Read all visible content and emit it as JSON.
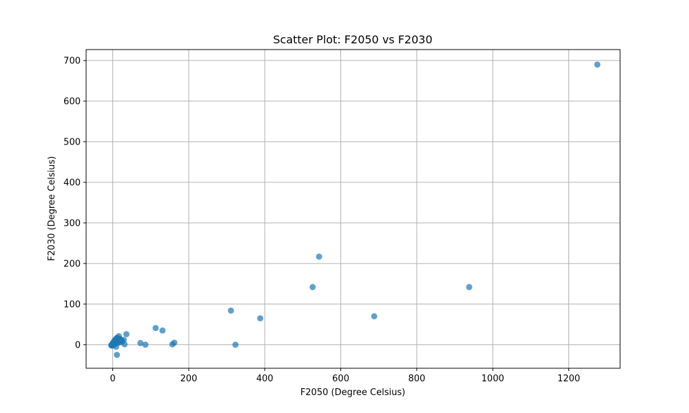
{
  "chart_data": {
    "type": "scatter",
    "title": "Scatter Plot: F2050 vs F2030",
    "xlabel": "F2050 (Degree Celsius)",
    "ylabel": "F2030 (Degree Celsius)",
    "xlim": [
      -70,
      1335
    ],
    "ylim": [
      -58,
      727
    ],
    "xticks": [
      0,
      200,
      400,
      600,
      800,
      1000,
      1200
    ],
    "yticks": [
      0,
      100,
      200,
      300,
      400,
      500,
      600,
      700
    ],
    "grid": true,
    "marker_color": "#1f77b4",
    "series": [
      {
        "x": [
          1275,
          543,
          526,
          938,
          688,
          311,
          388,
          323,
          113,
          131,
          73,
          86,
          157,
          162,
          36,
          31,
          29,
          25,
          22,
          20,
          18,
          16,
          15,
          14,
          12,
          10,
          9,
          8,
          7,
          6,
          5,
          4,
          3,
          2,
          1,
          0,
          -1,
          -2,
          -3,
          -4,
          0,
          2,
          4,
          6,
          8,
          10,
          12,
          14,
          16,
          18,
          20,
          22,
          9,
          11
        ],
        "y": [
          690,
          217,
          142,
          142,
          70,
          84,
          65,
          0,
          41,
          35,
          4,
          0,
          1,
          5,
          26,
          1,
          12,
          8,
          11,
          7,
          15,
          21,
          10,
          13,
          17,
          16,
          6,
          3,
          8,
          5,
          4,
          3,
          2,
          0,
          1,
          -2,
          -1,
          0,
          -2,
          -1,
          4,
          6,
          9,
          12,
          10,
          7,
          14,
          9,
          5,
          11,
          13,
          10,
          -5,
          -25
        ]
      }
    ]
  }
}
